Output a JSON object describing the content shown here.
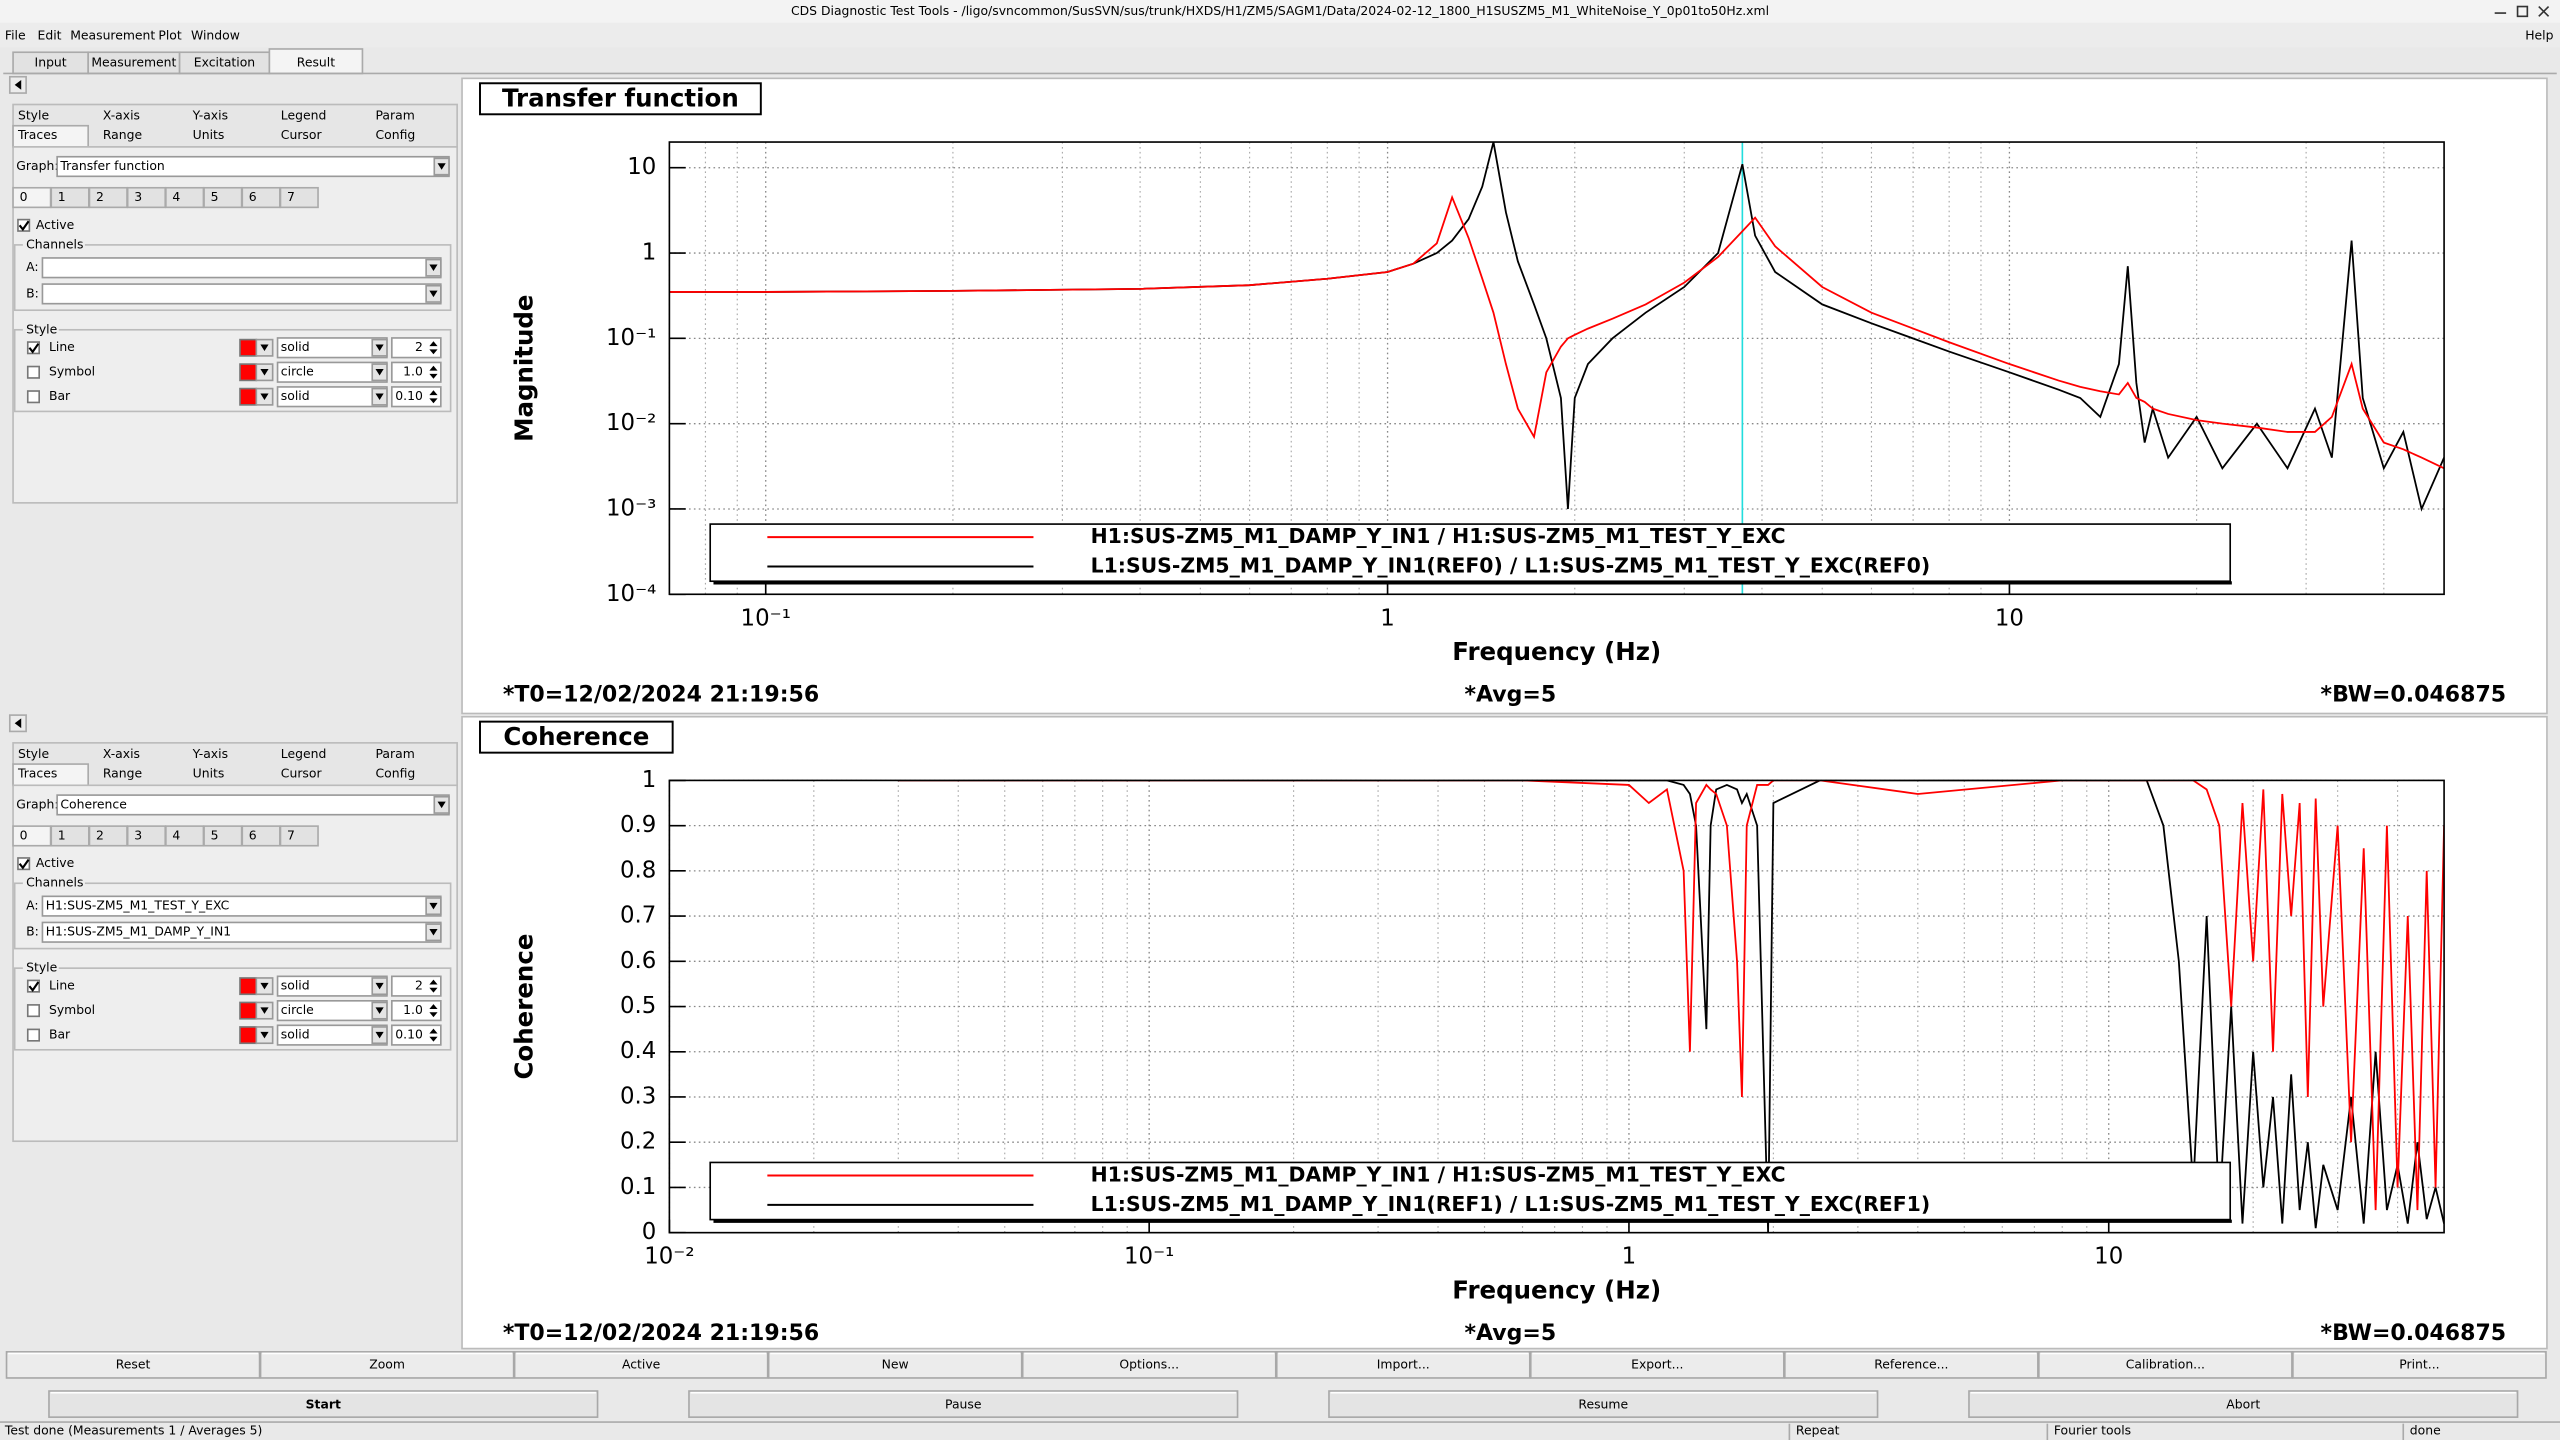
{
  "window_title": "CDS Diagnostic Test Tools - /ligo/svncommon/SusSVN/sus/trunk/HXDS/H1/ZM5/SAGM1/Data/2024-02-12_1800_H1SUSZM5_M1_WhiteNoise_Y_0p01to50Hz.xml",
  "menu": [
    "File",
    "Edit",
    "Measurement",
    "Plot",
    "Window"
  ],
  "help": "Help",
  "tabs": [
    "Input",
    "Measurement",
    "Excitation",
    "Result"
  ],
  "selected_tab": 3,
  "panels": [
    {
      "option_tabs": [
        [
          "Style",
          "X-axis",
          "Y-axis",
          "Legend",
          "Param"
        ],
        [
          "Traces",
          "Range",
          "Units",
          "Cursor",
          "Config"
        ]
      ],
      "graph_label": "Graph:",
      "graph": "Transfer function",
      "trace_tabs": [
        "0",
        "1",
        "2",
        "3",
        "4",
        "5",
        "6",
        "7"
      ],
      "active": "Active",
      "active_checked": true,
      "channels_label": "Channels",
      "a_label": "A:",
      "b_label": "B:",
      "style_label": "Style",
      "styles": [
        {
          "name": "Line",
          "checked": true,
          "color": "#ff0000",
          "type": "solid",
          "size": "2"
        },
        {
          "name": "Symbol",
          "checked": false,
          "color": "#ff0000",
          "type": "circle",
          "size": "1.0"
        },
        {
          "name": "Bar",
          "checked": false,
          "color": "#ff0000",
          "type": "solid",
          "size": "0.10"
        }
      ]
    },
    {
      "option_tabs": [
        [
          "Style",
          "X-axis",
          "Y-axis",
          "Legend",
          "Param"
        ],
        [
          "Traces",
          "Range",
          "Units",
          "Cursor",
          "Config"
        ]
      ],
      "graph_label": "Graph:",
      "graph": "Coherence",
      "trace_tabs": [
        "0",
        "1",
        "2",
        "3",
        "4",
        "5",
        "6",
        "7"
      ],
      "active": "Active",
      "active_checked": true,
      "channels_label": "Channels",
      "a_label": "A:",
      "a": "H1:SUS-ZM5_M1_TEST_Y_EXC",
      "b_label": "B:",
      "b": "H1:SUS-ZM5_M1_DAMP_Y_IN1",
      "style_label": "Style",
      "styles": [
        {
          "name": "Line",
          "checked": true,
          "color": "#ff0000",
          "type": "solid",
          "size": "2"
        },
        {
          "name": "Symbol",
          "checked": false,
          "color": "#ff0000",
          "type": "circle",
          "size": "1.0"
        },
        {
          "name": "Bar",
          "checked": false,
          "color": "#ff0000",
          "type": "solid",
          "size": "0.10"
        }
      ]
    }
  ],
  "buttons": [
    "Reset",
    "Zoom",
    "Active",
    "New",
    "Options...",
    "Import...",
    "Export...",
    "Reference...",
    "Calibration...",
    "Print..."
  ],
  "run_buttons": [
    "Start",
    "Pause",
    "Resume",
    "Abort"
  ],
  "status": [
    "Test done (Measurements 1 / Averages 5)",
    "Repeat",
    "Fourier tools",
    "done"
  ],
  "chart_data": [
    {
      "type": "line",
      "title": "Transfer function",
      "xlabel": "Frequency (Hz)",
      "ylabel": "Magnitude",
      "xscale": "log",
      "yscale": "log",
      "grid": true,
      "xlim": [
        0.07,
        50
      ],
      "ylim": [
        0.0001,
        20
      ],
      "xticks": [
        {
          "value": 0.1,
          "label": "10⁻¹"
        },
        1,
        10
      ],
      "x_minor_ticks": [
        0.07,
        0.08,
        0.09,
        0.2,
        0.3,
        0.4,
        0.5,
        0.6,
        0.7,
        0.8,
        0.9,
        2,
        3,
        4,
        5,
        6,
        7,
        8,
        9,
        20,
        30,
        40
      ],
      "yticks": [
        {
          "value": 0.0001,
          "label": "10⁻⁴"
        },
        {
          "value": 0.001,
          "label": "10⁻³"
        },
        {
          "value": 0.01,
          "label": "10⁻²"
        },
        {
          "value": 0.1,
          "label": "10⁻¹"
        },
        1,
        10
      ],
      "cursor_x": 3.72,
      "cursor_color": "#22dddd",
      "x": [
        0.07,
        0.1,
        0.2,
        0.4,
        0.6,
        0.8,
        1.0,
        1.1,
        1.2,
        1.27,
        1.35,
        1.42,
        1.48,
        1.55,
        1.62,
        1.72,
        1.8,
        1.9,
        1.95,
        2.0,
        2.1,
        2.3,
        2.6,
        3.0,
        3.4,
        3.72,
        3.9,
        4.2,
        5,
        6,
        8,
        10,
        12,
        13,
        14,
        15,
        15.5,
        16,
        16.5,
        17,
        18,
        20,
        22,
        25,
        28,
        31,
        33,
        35.5,
        37,
        40,
        43,
        46,
        50
      ],
      "series": [
        {
          "name": "H1:SUS-ZM5_M1_DAMP_Y_IN1 / H1:SUS-ZM5_M1_TEST_Y_EXC",
          "color": "#ff0000",
          "values": [
            0.35,
            0.35,
            0.36,
            0.38,
            0.42,
            0.5,
            0.6,
            0.75,
            1.3,
            4.5,
            1.5,
            0.5,
            0.2,
            0.05,
            0.015,
            0.007,
            0.04,
            0.08,
            0.1,
            0.11,
            0.13,
            0.17,
            0.25,
            0.45,
            0.9,
            1.8,
            2.6,
            1.2,
            0.4,
            0.2,
            0.09,
            0.05,
            0.032,
            0.027,
            0.024,
            0.022,
            0.03,
            0.02,
            0.018,
            0.015,
            0.013,
            0.011,
            0.01,
            0.009,
            0.008,
            0.008,
            0.012,
            0.05,
            0.015,
            0.006,
            0.005,
            0.004,
            0.003
          ]
        },
        {
          "name": "L1:SUS-ZM5_M1_DAMP_Y_IN1(REF0) / L1:SUS-ZM5_M1_TEST_Y_EXC(REF0)",
          "color": "#000000",
          "values": [
            0.35,
            0.35,
            0.36,
            0.38,
            0.42,
            0.5,
            0.6,
            0.75,
            1.0,
            1.4,
            2.5,
            6,
            20,
            3,
            0.8,
            0.25,
            0.1,
            0.02,
            0.001,
            0.02,
            0.05,
            0.1,
            0.2,
            0.4,
            1.0,
            11,
            1.6,
            0.6,
            0.25,
            0.15,
            0.07,
            0.04,
            0.025,
            0.02,
            0.012,
            0.05,
            0.7,
            0.03,
            0.006,
            0.015,
            0.004,
            0.012,
            0.003,
            0.01,
            0.003,
            0.015,
            0.004,
            1.4,
            0.02,
            0.003,
            0.008,
            0.001,
            0.004
          ]
        }
      ],
      "annotations": [
        "*T0=12/02/2024 21:19:56",
        "*Avg=5",
        "*BW=0.046875"
      ],
      "annotation_color": "#ff0000"
    },
    {
      "type": "line",
      "title": "Coherence",
      "xlabel": "Frequency (Hz)",
      "ylabel": "Coherence",
      "xscale": "log",
      "yscale": "linear",
      "grid": true,
      "xlim": [
        0.01,
        50
      ],
      "ylim": [
        0,
        1
      ],
      "xticks": [
        {
          "value": 0.01,
          "label": "10⁻²"
        },
        {
          "value": 0.1,
          "label": "10⁻¹"
        },
        1,
        10
      ],
      "x_minor_ticks": [
        0.02,
        0.03,
        0.04,
        0.05,
        0.06,
        0.07,
        0.08,
        0.09,
        0.2,
        0.3,
        0.4,
        0.5,
        0.6,
        0.7,
        0.8,
        0.9,
        2,
        3,
        4,
        5,
        6,
        7,
        8,
        9,
        20,
        30,
        40
      ],
      "yticks": [
        0,
        0.1,
        0.2,
        0.3,
        0.4,
        0.5,
        0.6,
        0.7,
        0.8,
        0.9,
        1
      ],
      "x": [
        0.03,
        0.1,
        0.3,
        0.6,
        1.0,
        1.1,
        1.2,
        1.3,
        1.34,
        1.38,
        1.45,
        1.48,
        1.52,
        1.6,
        1.68,
        1.72,
        1.76,
        1.85,
        1.95,
        2.0,
        2.5,
        4,
        8,
        12,
        13,
        14,
        15,
        16,
        17,
        18,
        19,
        20,
        21,
        22,
        23,
        24,
        25,
        26,
        27,
        28,
        30,
        32,
        34,
        36,
        38,
        40,
        42,
        44,
        46,
        48,
        50
      ],
      "series": [
        {
          "name": "H1:SUS-ZM5_M1_DAMP_Y_IN1 / H1:SUS-ZM5_M1_TEST_Y_EXC",
          "color": "#ff0000",
          "values": [
            1,
            1,
            1,
            1,
            0.99,
            0.95,
            0.98,
            0.8,
            0.4,
            0.95,
            0.99,
            0.98,
            0.97,
            0.9,
            0.6,
            0.3,
            0.9,
            0.99,
            0.99,
            1,
            1,
            0.97,
            1,
            1,
            1,
            1,
            1,
            0.98,
            0.9,
            0.5,
            0.95,
            0.6,
            0.98,
            0.4,
            0.97,
            0.7,
            0.95,
            0.3,
            0.96,
            0.5,
            0.9,
            0.2,
            0.85,
            0.05,
            0.9,
            0.1,
            0.7,
            0.05,
            0.8,
            0.1,
            0.9
          ]
        },
        {
          "name": "L1:SUS-ZM5_M1_DAMP_Y_IN1(REF1) / L1:SUS-ZM5_M1_TEST_Y_EXC(REF1)",
          "color": "#000000",
          "values": [
            1,
            1,
            1,
            1,
            1,
            1,
            1,
            0.99,
            0.97,
            0.9,
            0.45,
            0.9,
            0.98,
            0.99,
            0.98,
            0.95,
            0.97,
            0.9,
            0,
            0.95,
            1,
            1,
            1,
            1,
            0.9,
            0.6,
            0.1,
            0.7,
            0.05,
            0.5,
            0.02,
            0.4,
            0.1,
            0.3,
            0.02,
            0.35,
            0.05,
            0.2,
            0.01,
            0.15,
            0.05,
            0.3,
            0.02,
            0.4,
            0.05,
            0.15,
            0.02,
            0.2,
            0.03,
            0.1,
            0.02
          ]
        }
      ],
      "annotations": [
        "*T0=12/02/2024 21:19:56",
        "*Avg=5",
        "*BW=0.046875"
      ],
      "annotation_color": "#ff0000"
    }
  ]
}
